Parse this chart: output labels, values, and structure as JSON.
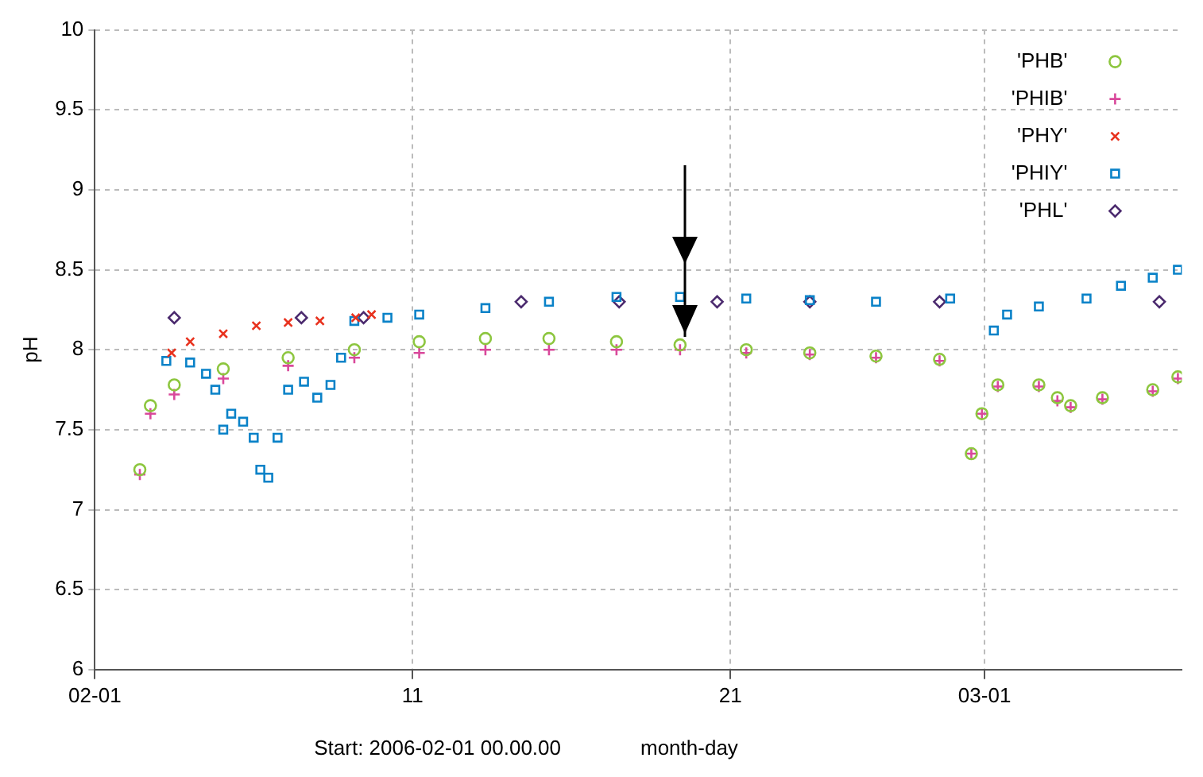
{
  "chart_data": {
    "type": "scatter",
    "xlabel": "month-day",
    "ylabel": "pH",
    "annotations": [
      "Start: 2006-02-01 00.00.00"
    ],
    "xlim": [
      "2006-02-01",
      "2006-03-07T05:00"
    ],
    "xticks": [
      {
        "value": "2006-02-01",
        "label": "02-01"
      },
      {
        "value": "2006-02-11",
        "label": "11"
      },
      {
        "value": "2006-02-21",
        "label": "21"
      },
      {
        "value": "2006-03-01",
        "label": "03-01"
      }
    ],
    "ylim": [
      6,
      10
    ],
    "yticks": [
      6,
      6.5,
      7,
      7.5,
      8,
      8.5,
      9,
      9.5,
      10
    ],
    "grid": true,
    "legend": "top right",
    "series": [
      {
        "name": "'PHB'",
        "color": "#8dc63f",
        "marker": "circle",
        "x": [
          "2006-02-02T10:00",
          "2006-02-02T18:00",
          "2006-02-03T12:00",
          "2006-02-05T01:00",
          "2006-02-07T02:00",
          "2006-02-09T04:00",
          "2006-02-11T05:00",
          "2006-02-13T07:00",
          "2006-02-15T07:00",
          "2006-02-17T10:00",
          "2006-02-19T10:00",
          "2006-02-21T12:00",
          "2006-02-23T12:00",
          "2006-02-25T14:00",
          "2006-02-27T14:00",
          "2006-02-28T14:00",
          "2006-02-28T22:00",
          "2006-03-01T10:00",
          "2006-03-02T17:00",
          "2006-03-03T07:00",
          "2006-03-03T17:00",
          "2006-03-04T17:00",
          "2006-03-06T07:00",
          "2006-03-07T02:00"
        ],
        "values": [
          7.25,
          7.65,
          7.78,
          7.88,
          7.95,
          8.0,
          8.05,
          8.07,
          8.07,
          8.05,
          8.03,
          8.0,
          7.98,
          7.96,
          7.94,
          7.35,
          7.6,
          7.78,
          7.78,
          7.7,
          7.65,
          7.7,
          7.75,
          7.83
        ]
      },
      {
        "name": "'PHIB'",
        "color": "#d9489b",
        "marker": "cross",
        "x": [
          "2006-02-02T10:00",
          "2006-02-02T18:00",
          "2006-02-03T12:00",
          "2006-02-05T01:00",
          "2006-02-07T02:00",
          "2006-02-09T04:00",
          "2006-02-11T05:00",
          "2006-02-13T07:00",
          "2006-02-15T07:00",
          "2006-02-17T10:00",
          "2006-02-19T10:00",
          "2006-02-21T12:00",
          "2006-02-23T12:00",
          "2006-02-25T14:00",
          "2006-02-27T14:00",
          "2006-02-28T14:00",
          "2006-02-28T22:00",
          "2006-03-01T10:00",
          "2006-03-02T17:00",
          "2006-03-03T07:00",
          "2006-03-03T17:00",
          "2006-03-04T17:00",
          "2006-03-06T07:00",
          "2006-03-07T02:00"
        ],
        "values": [
          7.22,
          7.6,
          7.72,
          7.82,
          7.9,
          7.95,
          7.98,
          8.0,
          8.0,
          8.0,
          8.0,
          7.98,
          7.97,
          7.95,
          7.93,
          7.35,
          7.6,
          7.77,
          7.77,
          7.68,
          7.64,
          7.69,
          7.74,
          7.82
        ]
      },
      {
        "name": "'PHY'",
        "color": "#e8321e",
        "marker": "x",
        "x": [
          "2006-02-03T10:00",
          "2006-02-04T00:00",
          "2006-02-05T01:00",
          "2006-02-06T02:00",
          "2006-02-07T02:00",
          "2006-02-08T02:00",
          "2006-02-09T05:00",
          "2006-02-09T17:00"
        ],
        "values": [
          7.98,
          8.05,
          8.1,
          8.15,
          8.17,
          8.18,
          8.2,
          8.22
        ]
      },
      {
        "name": "'PHIY'",
        "color": "#0a82c8",
        "marker": "square",
        "x": [
          "2006-02-03T06:00",
          "2006-02-04T00:00",
          "2006-02-04T12:00",
          "2006-02-04T19:00",
          "2006-02-05T01:00",
          "2006-02-05T07:00",
          "2006-02-05T16:00",
          "2006-02-06T00:00",
          "2006-02-06T05:00",
          "2006-02-06T11:00",
          "2006-02-06T18:00",
          "2006-02-07T02:00",
          "2006-02-07T14:00",
          "2006-02-08T00:00",
          "2006-02-08T10:00",
          "2006-02-08T18:00",
          "2006-02-09T04:00",
          "2006-02-10T05:00",
          "2006-02-11T05:00",
          "2006-02-13T07:00",
          "2006-02-15T07:00",
          "2006-02-17T10:00",
          "2006-02-19T10:00",
          "2006-02-21T12:00",
          "2006-02-23T12:00",
          "2006-02-25T14:00",
          "2006-02-27T22:00",
          "2006-03-01T07:00",
          "2006-03-01T17:00",
          "2006-03-02T17:00",
          "2006-03-04T05:00",
          "2006-03-05T07:00",
          "2006-03-06T07:00",
          "2006-03-07T02:00"
        ],
        "values": [
          7.93,
          7.92,
          7.85,
          7.75,
          7.5,
          7.6,
          7.55,
          7.45,
          7.25,
          7.2,
          7.45,
          7.75,
          7.8,
          7.7,
          7.78,
          7.95,
          8.18,
          8.2,
          8.22,
          8.26,
          8.3,
          8.33,
          8.33,
          8.32,
          8.31,
          8.3,
          8.32,
          8.12,
          8.22,
          8.27,
          8.32,
          8.4,
          8.45,
          8.5
        ]
      },
      {
        "name": "'PHL'",
        "color": "#4b2a6e",
        "marker": "diamond",
        "x": [
          "2006-02-03T12:00",
          "2006-02-07T12:00",
          "2006-02-09T11:00",
          "2006-02-14T10:00",
          "2006-02-17T12:00",
          "2006-02-20T14:00",
          "2006-02-23T12:00",
          "2006-02-27T14:00",
          "2006-03-06T12:00"
        ],
        "values": [
          8.2,
          8.2,
          8.2,
          8.3,
          8.3,
          8.3,
          8.3,
          8.3,
          8.3
        ]
      }
    ]
  }
}
